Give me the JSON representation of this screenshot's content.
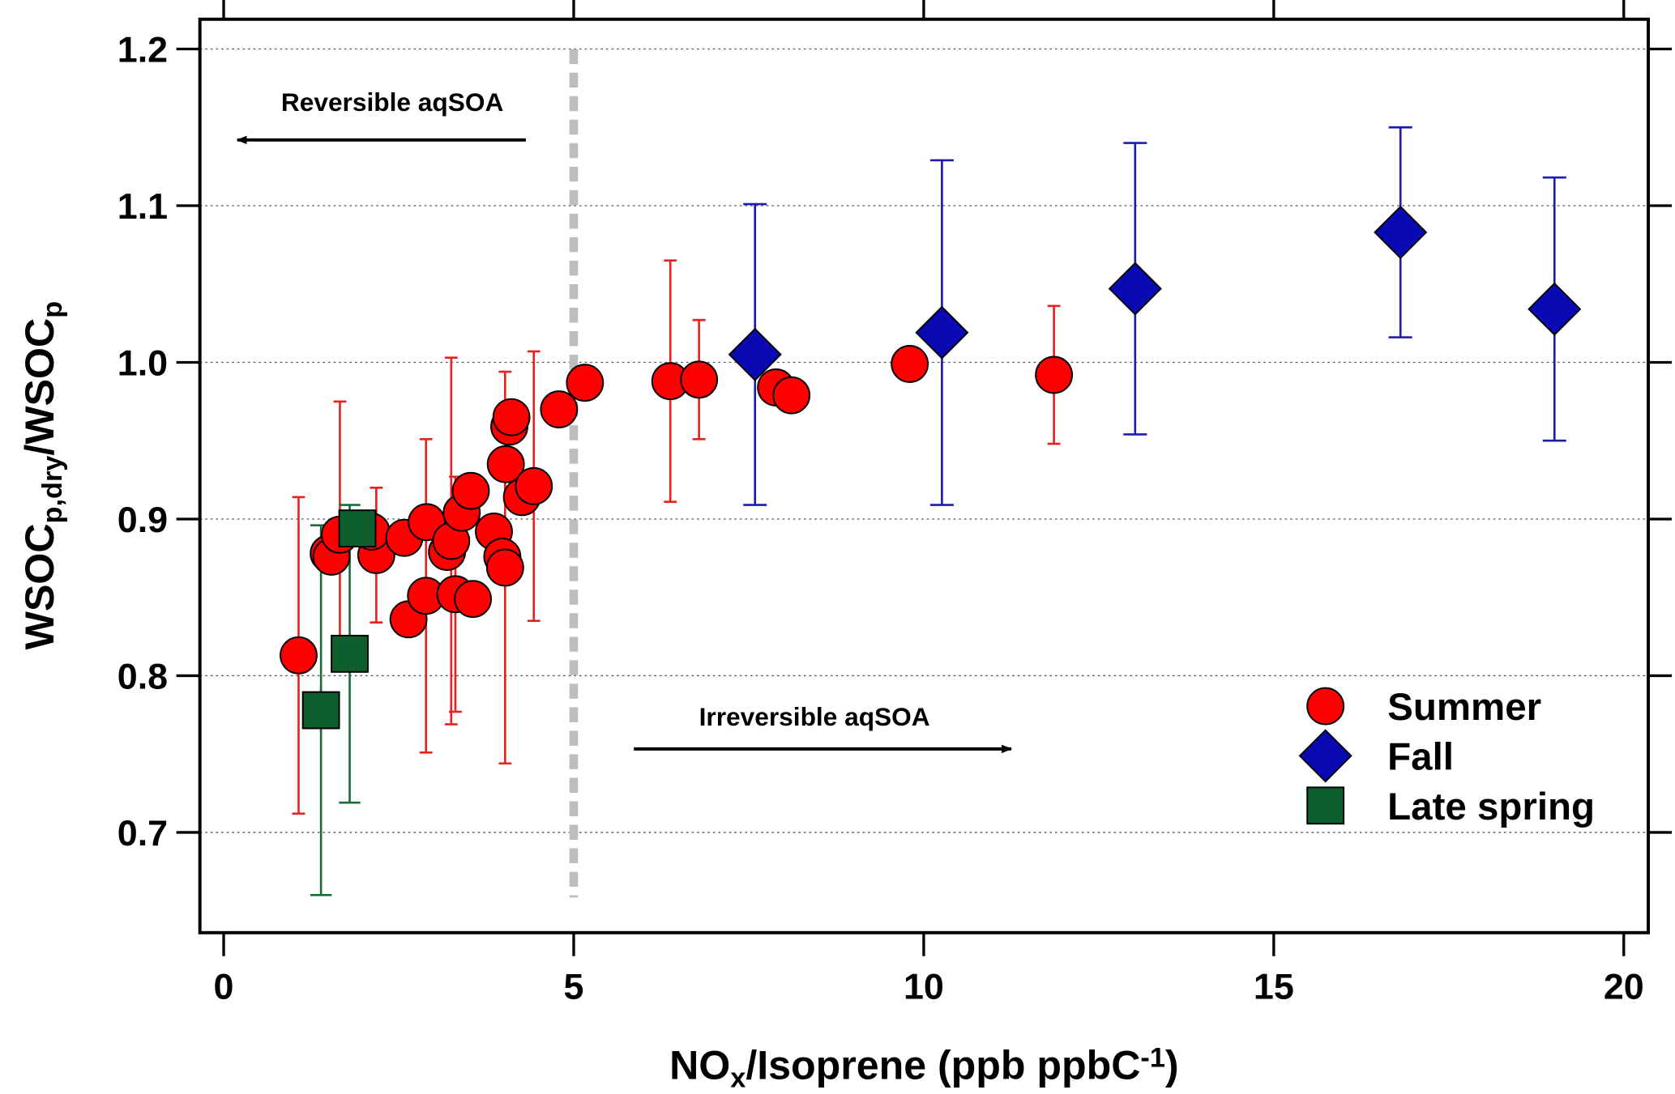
{
  "chart_data": {
    "type": "scatter",
    "ylabel_parts": [
      {
        "text": "WSOC",
        "script": "base"
      },
      {
        "text": "p,dry",
        "script": "sub"
      },
      {
        "text": "/WSOC",
        "script": "base"
      },
      {
        "text": "p",
        "script": "sub"
      }
    ],
    "xlabel_parts": [
      {
        "text": "NO",
        "script": "base"
      },
      {
        "text": "x",
        "script": "sub"
      },
      {
        "text": "/Isoprene (ppb ppbC",
        "script": "base"
      },
      {
        "text": "-1",
        "script": "super"
      },
      {
        "text": ")",
        "script": "base"
      }
    ],
    "xlim": [
      -0.34,
      20.35
    ],
    "ylim": [
      0.636,
      1.219
    ],
    "xticks": [
      0,
      5,
      10,
      15,
      20
    ],
    "yticks": [
      0.7,
      0.8,
      0.9,
      {
        "value": 1,
        "label": "1.0"
      },
      1.1,
      1.2
    ],
    "grid": true,
    "legend": "lower right",
    "vline": {
      "x": 5,
      "color": "#bdbdbd"
    },
    "annotations": [
      {
        "text": "Reversible aqSOA"
      },
      {
        "text": "Irreversible aqSOA"
      }
    ],
    "series": [
      {
        "name": "Summer",
        "marker": "circle",
        "color": "#ff0000",
        "error_color": "#e8231f",
        "x": [
          1.07,
          1.5,
          1.54,
          1.66,
          2.18,
          2.11,
          2.58,
          2.64,
          2.89,
          2.9,
          3.19,
          3.25,
          3.31,
          3.4,
          3.53,
          3.56,
          3.86,
          3.98,
          4.02,
          4.03,
          4.08,
          4.11,
          4.26,
          4.43,
          4.79,
          5.16,
          6.38,
          6.79,
          7.89,
          8.11,
          9.8,
          11.86
        ],
        "values": [
          0.813,
          0.878,
          0.876,
          0.89,
          0.877,
          0.892,
          0.888,
          0.836,
          0.851,
          0.898,
          0.879,
          0.886,
          0.852,
          0.904,
          0.918,
          0.849,
          0.892,
          0.876,
          0.869,
          0.935,
          0.959,
          0.965,
          0.914,
          0.921,
          0.97,
          0.987,
          0.988,
          0.989,
          0.984,
          0.979,
          0.999,
          0.992
        ],
        "errors": [
          0.101,
          null,
          null,
          0.085,
          0.043,
          null,
          null,
          null,
          0.1,
          null,
          null,
          0.117,
          0.075,
          null,
          null,
          null,
          null,
          null,
          0.125,
          null,
          null,
          null,
          null,
          0.086,
          null,
          null,
          0.077,
          0.038,
          null,
          null,
          null,
          0.044
        ]
      },
      {
        "name": "Fall",
        "marker": "diamond",
        "color": "#0a0ab4",
        "error_color": "#1c1cb0",
        "x": [
          7.59,
          10.26,
          13.02,
          16.81,
          19.01
        ],
        "values": [
          1.005,
          1.019,
          1.047,
          1.083,
          1.034
        ],
        "errors": [
          0.096,
          0.11,
          0.093,
          0.067,
          0.084
        ]
      },
      {
        "name": "Late spring",
        "marker": "square",
        "color": "#0e5e2e",
        "error_color": "#1a6a3a",
        "x": [
          1.39,
          1.8,
          1.91
        ],
        "values": [
          0.778,
          0.814,
          0.894
        ],
        "errors": [
          0.118,
          0.095,
          null
        ]
      }
    ]
  }
}
